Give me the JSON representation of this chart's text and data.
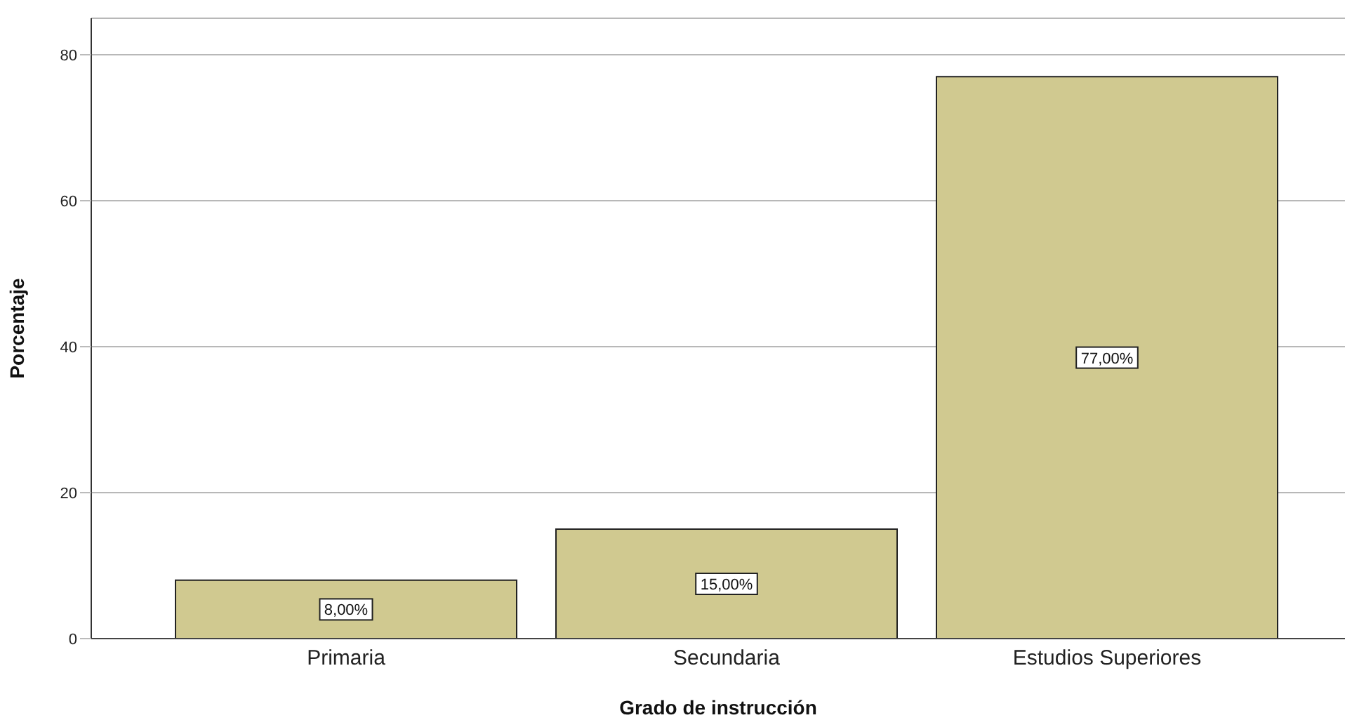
{
  "chart_data": {
    "type": "bar",
    "xlabel": "Grado de instrucción",
    "ylabel": "Porcentaje",
    "categories": [
      "Primaria",
      "Secundaria",
      "Estudios Superiores"
    ],
    "values": [
      8,
      15,
      77
    ],
    "value_labels": [
      "8,00%",
      "15,00%",
      "77,00%"
    ],
    "color": "#d0c990",
    "ylim": [
      0,
      85
    ],
    "yticks": [
      0,
      20,
      40,
      60,
      80
    ],
    "grid": "y"
  }
}
